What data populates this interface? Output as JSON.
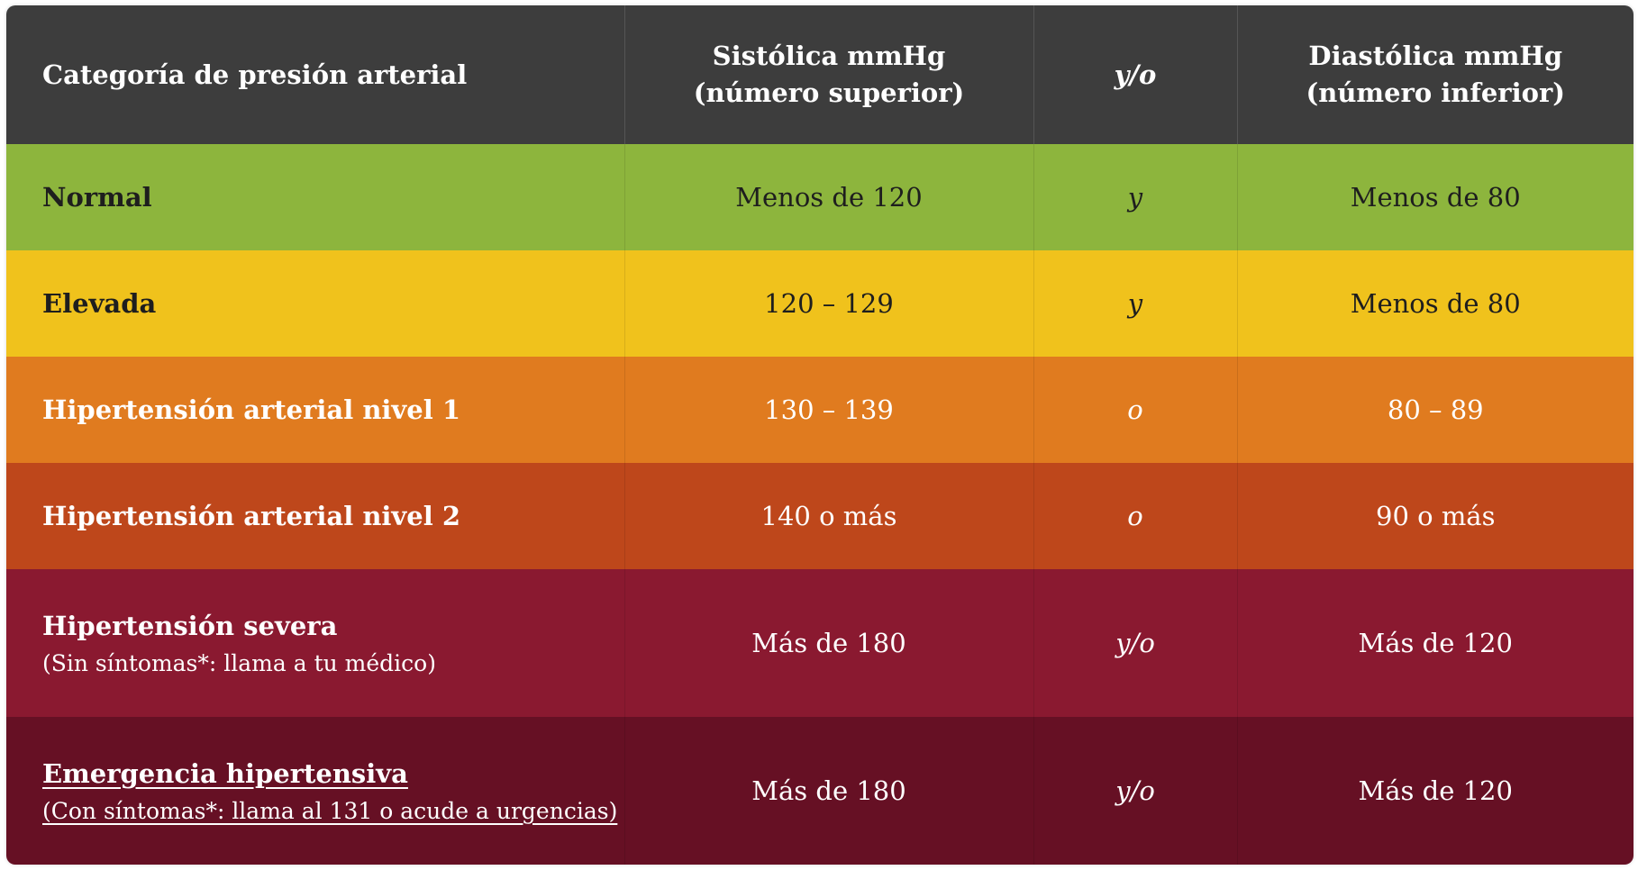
{
  "header": {
    "category": "Categoría de presión arterial",
    "systolic_line1": "Sistólica mmHg",
    "systolic_line2": "(número superior)",
    "conjunction": "y/o",
    "diastolic_line1": "Diastólica mmHg",
    "diastolic_line2": "(número inferior)"
  },
  "rows": [
    {
      "category": "Normal",
      "systolic": "Menos de 120",
      "conjunction": "y",
      "diastolic": "Menos de 80",
      "color": "#8db53d"
    },
    {
      "category": "Elevada",
      "systolic": "120 – 129",
      "conjunction": "y",
      "diastolic": "Menos de 80",
      "color": "#f0c21c"
    },
    {
      "category": "Hipertensión arterial nivel 1",
      "systolic": "130 – 139",
      "conjunction": "o",
      "diastolic": "80 – 89",
      "color": "#e07b1f"
    },
    {
      "category": "Hipertensión arterial nivel 2",
      "systolic": "140 o más",
      "conjunction": "o",
      "diastolic": "90 o más",
      "color": "#be471b"
    },
    {
      "category": "Hipertensión severa",
      "note": "(Sin síntomas*: llama a tu médico)",
      "systolic": "Más de 180",
      "conjunction": "y/o",
      "diastolic": "Más de 120",
      "color": "#8a1930"
    },
    {
      "category": "Emergencia hipertensiva",
      "note": "(Con síntomas*: llama al 131 o acude a urgencias)",
      "systolic": "Más de 180",
      "conjunction": "y/o",
      "diastolic": "Más de 120",
      "color": "#661024"
    }
  ]
}
